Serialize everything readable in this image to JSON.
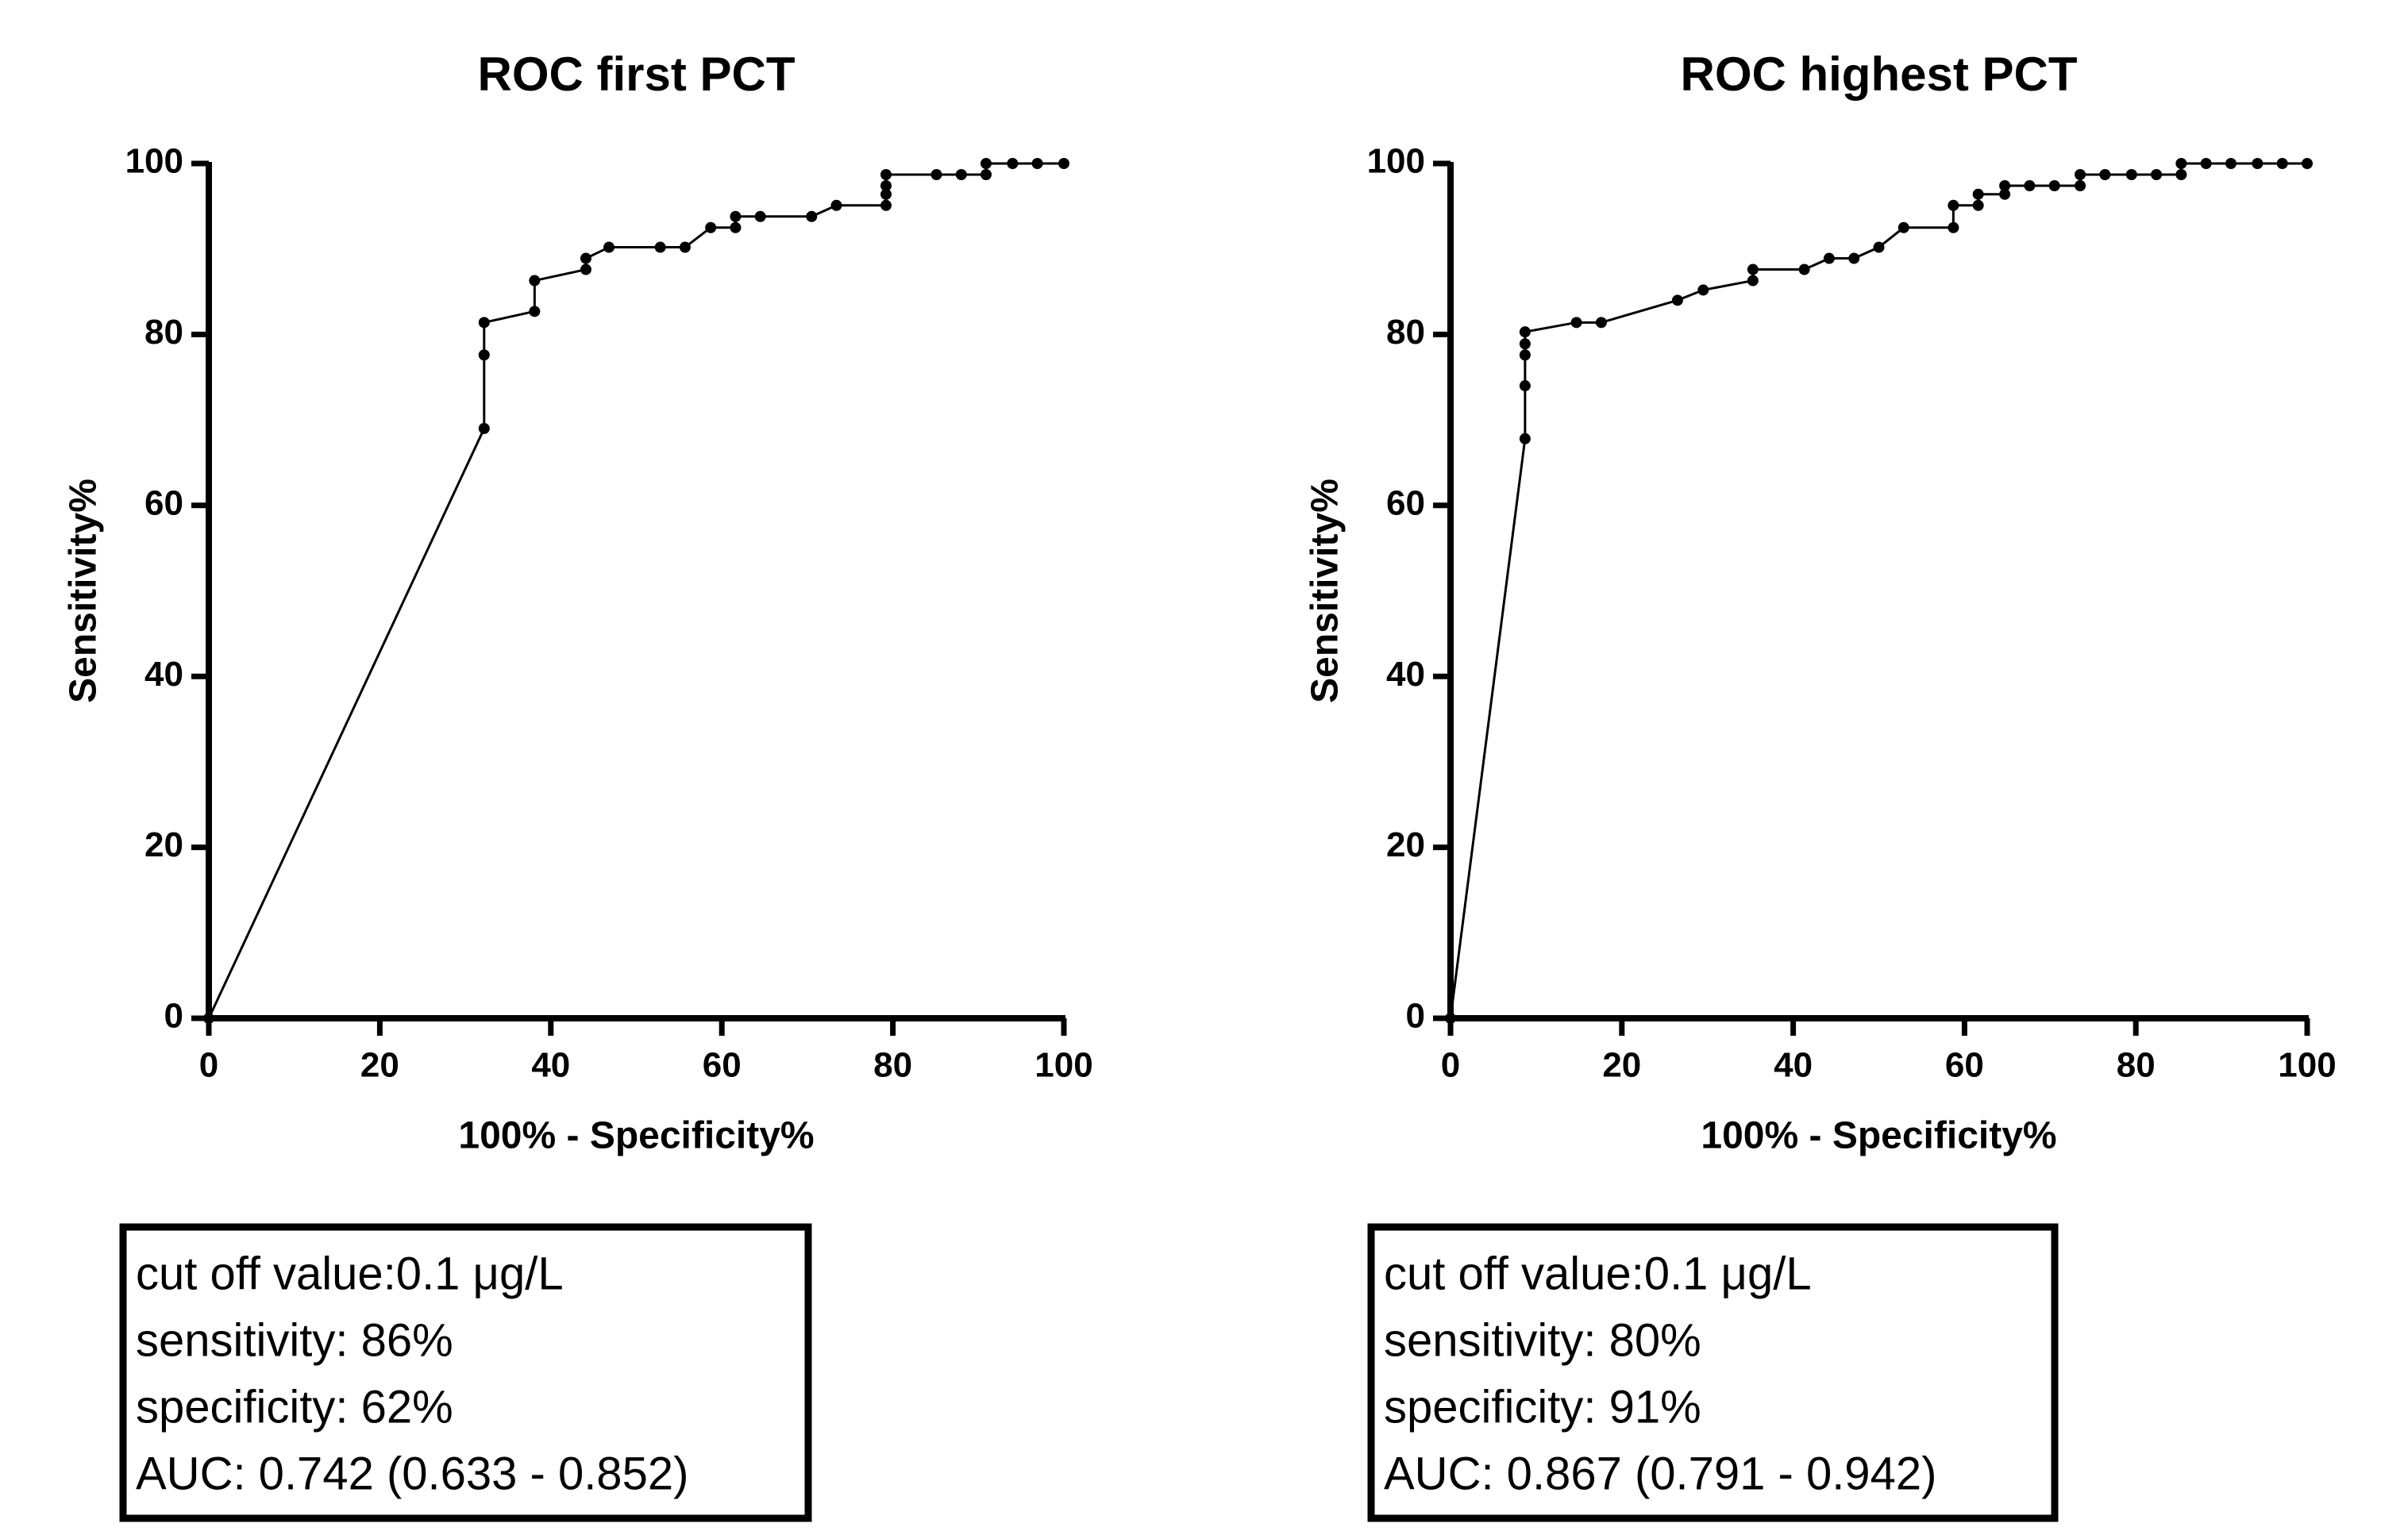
{
  "chart_data": [
    {
      "type": "line",
      "title": "ROC first PCT",
      "x_label": "100% - Specificity%",
      "y_label": "Sensitivity%",
      "color": "#000000",
      "markers": true,
      "x": [
        0,
        32.2,
        32.2,
        32.2,
        38.1,
        38.1,
        44.1,
        44.1,
        46.8,
        52.8,
        55.7,
        58.7,
        61.6,
        61.6,
        64.5,
        70.5,
        73.4,
        79.2,
        79.2,
        79.2,
        79.2,
        85.1,
        88.0,
        90.9,
        90.9,
        94.0,
        96.9,
        100
      ],
      "values": [
        0,
        69.0,
        77.6,
        81.4,
        82.7,
        86.3,
        87.6,
        88.9,
        90.2,
        90.2,
        90.2,
        92.5,
        92.5,
        93.8,
        93.8,
        93.8,
        95.1,
        95.1,
        96.4,
        97.4,
        98.7,
        98.7,
        98.7,
        98.7,
        100,
        100,
        100,
        100
      ],
      "xlim": [
        0,
        100
      ],
      "ylim": [
        0,
        100
      ],
      "xticks": [
        0,
        20,
        40,
        60,
        80,
        100
      ],
      "yticks": [
        0,
        20,
        40,
        60,
        80,
        100
      ],
      "notes": [
        "cut off value:0.1 μg/L",
        "sensitivity: 86%",
        "specificity: 62%",
        "AUC: 0.742 (0.633 - 0.852)"
      ]
    },
    {
      "type": "line",
      "title": "ROC highest PCT",
      "x_label": "100% - Specificity%",
      "y_label": "Sensitivity%",
      "color": "#000000",
      "markers": true,
      "x": [
        0,
        8.7,
        8.7,
        8.7,
        8.7,
        8.7,
        14.7,
        17.6,
        26.5,
        29.5,
        35.3,
        35.3,
        41.3,
        44.2,
        47.1,
        50.0,
        52.9,
        58.7,
        58.7,
        61.6,
        61.6,
        64.7,
        64.7,
        67.6,
        70.5,
        73.5,
        73.5,
        76.4,
        79.5,
        82.4,
        85.3,
        85.3,
        88.2,
        91.1,
        94.2,
        97.1,
        100
      ],
      "values": [
        0,
        67.8,
        74.0,
        77.6,
        78.9,
        80.3,
        81.4,
        81.4,
        84.0,
        85.2,
        86.3,
        87.6,
        87.6,
        88.9,
        88.9,
        90.2,
        92.5,
        92.5,
        95.1,
        95.1,
        96.4,
        96.4,
        97.4,
        97.4,
        97.4,
        97.4,
        98.7,
        98.7,
        98.7,
        98.7,
        98.7,
        100,
        100,
        100,
        100,
        100,
        100
      ],
      "xlim": [
        0,
        100
      ],
      "ylim": [
        0,
        100
      ],
      "xticks": [
        0,
        20,
        40,
        60,
        80,
        100
      ],
      "yticks": [
        0,
        20,
        40,
        60,
        80,
        100
      ],
      "notes": [
        "cut off value:0.1 μg/L",
        "sensitivity: 80%",
        "specificity: 91%",
        "AUC: 0.867 (0.791 - 0.942)"
      ]
    }
  ]
}
